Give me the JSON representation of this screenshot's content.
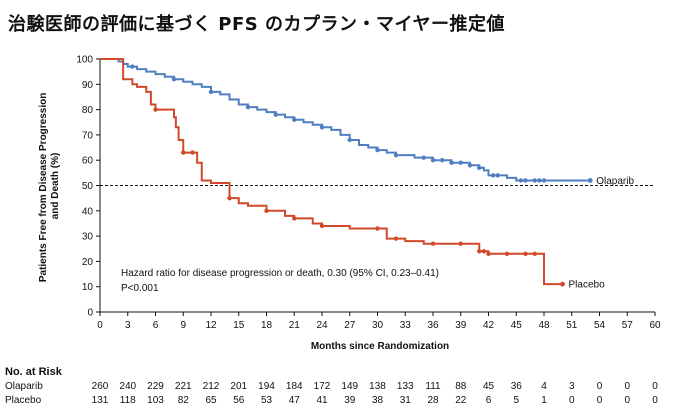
{
  "page_title": "治験医師の評価に基づく PFS のカプラン・マイヤー推定値",
  "chart_data": {
    "type": "line",
    "subtype": "kaplan-meier",
    "title": "治験医師の評価に基づく PFS のカプラン・マイヤー推定値",
    "xlabel": "Months since Randomization",
    "ylabel": "Patients Free from Disease Progression and Death (%)",
    "xlim": [
      0,
      60
    ],
    "ylim": [
      0,
      100
    ],
    "x_ticks": [
      0,
      3,
      6,
      9,
      12,
      15,
      18,
      21,
      24,
      27,
      30,
      33,
      36,
      39,
      42,
      45,
      48,
      51,
      54,
      57,
      60
    ],
    "y_ticks": [
      0,
      10,
      20,
      30,
      40,
      50,
      60,
      70,
      80,
      90,
      100
    ],
    "reference_line": {
      "y": 50,
      "style": "dashed"
    },
    "annotation": {
      "line1": "Hazard ratio for disease progression or death, 0.30 (95% CI, 0.23–0.41)",
      "line2": "P<0.001"
    },
    "series": [
      {
        "name": "Olaparib",
        "color": "#4f7fc1",
        "points": [
          [
            0,
            100
          ],
          [
            1,
            100
          ],
          [
            2,
            99
          ],
          [
            2.5,
            98
          ],
          [
            3,
            97
          ],
          [
            4,
            96
          ],
          [
            5,
            95
          ],
          [
            6,
            94
          ],
          [
            7,
            93
          ],
          [
            8,
            92
          ],
          [
            9,
            91
          ],
          [
            10,
            90
          ],
          [
            11,
            89
          ],
          [
            12,
            87
          ],
          [
            13,
            86
          ],
          [
            14,
            84
          ],
          [
            15,
            82
          ],
          [
            16,
            81
          ],
          [
            17,
            80
          ],
          [
            18,
            79
          ],
          [
            19,
            78
          ],
          [
            20,
            77
          ],
          [
            21,
            76
          ],
          [
            22,
            75
          ],
          [
            23,
            74
          ],
          [
            24,
            73
          ],
          [
            25,
            72
          ],
          [
            26,
            70
          ],
          [
            27,
            68
          ],
          [
            28,
            66
          ],
          [
            29,
            65
          ],
          [
            30,
            64
          ],
          [
            31,
            63
          ],
          [
            32,
            62
          ],
          [
            33,
            62
          ],
          [
            34,
            61
          ],
          [
            35,
            61
          ],
          [
            36,
            60
          ],
          [
            37,
            60
          ],
          [
            38,
            59
          ],
          [
            39,
            59
          ],
          [
            40,
            58
          ],
          [
            41,
            57
          ],
          [
            41.5,
            56
          ],
          [
            42,
            54
          ],
          [
            43,
            54
          ],
          [
            44,
            53
          ],
          [
            45,
            52
          ],
          [
            46,
            52
          ],
          [
            48,
            52
          ],
          [
            50,
            52
          ],
          [
            52,
            52
          ],
          [
            53,
            52
          ]
        ],
        "censor_x": [
          3.5,
          8,
          12,
          16,
          19,
          21,
          24,
          27,
          30,
          32,
          35,
          36,
          37,
          38,
          39,
          40,
          41,
          42.5,
          43,
          45.5,
          46,
          47,
          47.5,
          48,
          53
        ]
      },
      {
        "name": "Placebo",
        "color": "#d2492a",
        "points": [
          [
            0,
            100
          ],
          [
            2,
            100
          ],
          [
            2.5,
            92
          ],
          [
            3,
            92
          ],
          [
            3.5,
            90
          ],
          [
            4,
            89
          ],
          [
            5,
            87
          ],
          [
            5.5,
            82
          ],
          [
            6,
            80
          ],
          [
            7,
            80
          ],
          [
            8,
            77
          ],
          [
            8.2,
            73
          ],
          [
            8.5,
            68
          ],
          [
            9,
            63
          ],
          [
            10,
            63
          ],
          [
            10.5,
            59
          ],
          [
            11,
            52
          ],
          [
            12,
            51
          ],
          [
            13,
            51
          ],
          [
            13.8,
            51
          ],
          [
            14,
            45
          ],
          [
            15,
            43
          ],
          [
            16,
            42
          ],
          [
            17,
            42
          ],
          [
            18,
            40
          ],
          [
            19,
            40
          ],
          [
            20,
            38
          ],
          [
            21,
            37
          ],
          [
            22,
            37
          ],
          [
            23,
            35
          ],
          [
            24,
            34
          ],
          [
            26,
            34
          ],
          [
            27,
            33
          ],
          [
            29,
            33
          ],
          [
            30,
            33
          ],
          [
            31,
            29
          ],
          [
            33,
            28
          ],
          [
            35,
            27
          ],
          [
            37,
            27
          ],
          [
            39,
            27
          ],
          [
            41,
            24
          ],
          [
            42,
            23
          ],
          [
            44,
            23
          ],
          [
            46,
            23
          ],
          [
            47,
            23
          ],
          [
            48,
            23
          ],
          [
            48,
            11
          ],
          [
            50,
            11
          ]
        ],
        "censor_x": [
          6,
          9,
          10,
          14,
          18,
          21,
          24,
          30,
          32,
          36,
          39,
          41,
          41.5,
          42,
          44,
          46,
          47,
          50
        ]
      }
    ],
    "risk_table": {
      "title": "No. at Risk",
      "rows": [
        {
          "label": "Olaparib",
          "values": [
            260,
            240,
            229,
            221,
            212,
            201,
            194,
            184,
            172,
            149,
            138,
            133,
            111,
            88,
            45,
            36,
            4,
            3,
            0,
            0,
            0
          ]
        },
        {
          "label": "Placebo",
          "values": [
            131,
            118,
            103,
            82,
            65,
            56,
            53,
            47,
            41,
            39,
            38,
            31,
            28,
            22,
            6,
            5,
            1,
            0,
            0,
            0,
            0
          ]
        }
      ]
    }
  }
}
